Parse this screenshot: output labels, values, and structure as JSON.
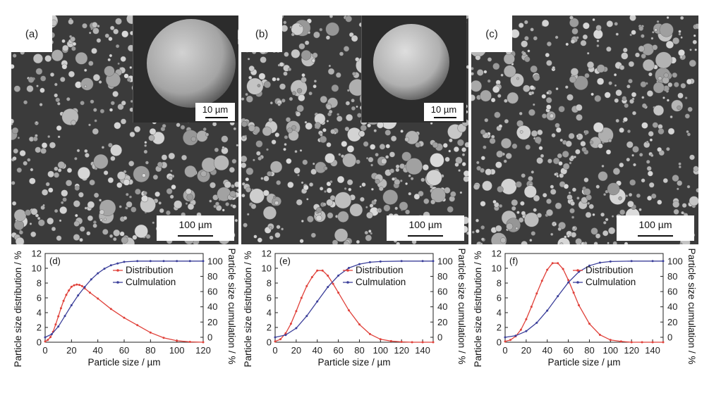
{
  "sem_panels": [
    {
      "label": "(a)",
      "inset_scale": "10 µm",
      "main_scale": "100 µm",
      "has_inset": true
    },
    {
      "label": "(b)",
      "inset_scale": "10 µm",
      "main_scale": "100 µm",
      "has_inset": true
    },
    {
      "label": "(c)",
      "main_scale": "100 µm",
      "has_inset": false
    }
  ],
  "colors": {
    "distribution": "#e0413a",
    "cumulation": "#3b3f9a",
    "sem_bg": "#3b3b3b"
  },
  "chart_data": [
    {
      "type": "line",
      "panel_label": "(d)",
      "xlabel": "Particle size / µm",
      "ylabel_left": "Particle size distribution / %",
      "ylabel_right": "Particle size cumulation / %",
      "xlim": [
        0,
        120
      ],
      "xticks": [
        0,
        20,
        40,
        60,
        80,
        100,
        120
      ],
      "ylim_left": [
        0,
        12
      ],
      "yticks_left": [
        0,
        2,
        4,
        6,
        8,
        10,
        12
      ],
      "ylim_right": [
        -6.5,
        110
      ],
      "yticks_right": [
        0,
        20,
        40,
        60,
        80,
        100
      ],
      "legend": [
        "Distribution",
        "Culmulation"
      ],
      "series": [
        {
          "name": "Distribution",
          "axis": "left",
          "x": [
            0,
            2,
            4,
            6,
            8,
            10,
            12,
            14,
            16,
            18,
            20,
            22,
            24,
            26,
            28,
            30,
            34,
            40,
            50,
            60,
            70,
            80,
            90,
            100,
            110,
            120
          ],
          "values": [
            0.1,
            0.3,
            0.7,
            1.4,
            2.4,
            3.5,
            4.6,
            5.6,
            6.4,
            7.0,
            7.5,
            7.7,
            7.8,
            7.75,
            7.6,
            7.3,
            6.7,
            5.9,
            4.5,
            3.3,
            2.3,
            1.3,
            0.6,
            0.2,
            0.05,
            0.0
          ]
        },
        {
          "name": "Culmulation",
          "axis": "right",
          "x": [
            0,
            5,
            10,
            15,
            20,
            25,
            30,
            35,
            40,
            45,
            50,
            55,
            60,
            70,
            80,
            90,
            100,
            110,
            120
          ],
          "values": [
            0,
            4,
            14,
            28,
            42,
            55,
            66,
            76,
            84,
            90,
            94.5,
            97,
            99,
            100,
            100,
            100,
            100,
            100,
            100
          ]
        }
      ]
    },
    {
      "type": "line",
      "panel_label": "(e)",
      "xlabel": "Particle size / µm",
      "ylabel_left": "Particle size distribution / %",
      "ylabel_right": "Particle size cumulation / %",
      "xlim": [
        0,
        150
      ],
      "xticks": [
        0,
        20,
        40,
        60,
        80,
        100,
        120,
        140
      ],
      "ylim_left": [
        0,
        12
      ],
      "yticks_left": [
        0,
        2,
        4,
        6,
        8,
        10,
        12
      ],
      "ylim_right": [
        -6.5,
        110
      ],
      "yticks_right": [
        0,
        20,
        40,
        60,
        80,
        100
      ],
      "legend": [
        "Distribution",
        "Culmulation"
      ],
      "series": [
        {
          "name": "Distribution",
          "axis": "left",
          "x": [
            0,
            5,
            10,
            15,
            20,
            25,
            30,
            35,
            40,
            45,
            50,
            55,
            60,
            70,
            80,
            90,
            100,
            110,
            120,
            130,
            140,
            150
          ],
          "values": [
            0.1,
            0.4,
            1.2,
            2.5,
            4.2,
            6.0,
            7.6,
            8.8,
            9.7,
            9.7,
            9.0,
            7.9,
            6.7,
            4.3,
            2.4,
            1.1,
            0.4,
            0.15,
            0.05,
            0.0,
            0.0,
            0.0
          ]
        },
        {
          "name": "Culmulation",
          "axis": "right",
          "x": [
            0,
            10,
            20,
            30,
            40,
            50,
            60,
            70,
            80,
            90,
            100,
            120,
            140,
            150
          ],
          "values": [
            0,
            3,
            12,
            28,
            47,
            66,
            81,
            91,
            96,
            98.5,
            99.5,
            100,
            100,
            100
          ]
        }
      ]
    },
    {
      "type": "line",
      "panel_label": "(f)",
      "xlabel": "Particle size / µm",
      "ylabel_left": "Particle size distribution / %",
      "ylabel_right": "Particle size cumulation / %",
      "xlim": [
        0,
        150
      ],
      "xticks": [
        0,
        20,
        40,
        60,
        80,
        100,
        120,
        140
      ],
      "ylim_left": [
        0,
        12
      ],
      "yticks_left": [
        0,
        2,
        4,
        6,
        8,
        10,
        12
      ],
      "ylim_right": [
        -6.5,
        110
      ],
      "yticks_right": [
        0,
        20,
        40,
        60,
        80,
        100
      ],
      "legend": [
        "Distribution",
        "Culmulation"
      ],
      "series": [
        {
          "name": "Distribution",
          "axis": "left",
          "x": [
            0,
            5,
            10,
            15,
            20,
            25,
            30,
            35,
            40,
            45,
            50,
            55,
            60,
            65,
            70,
            80,
            90,
            100,
            110,
            120,
            130,
            140,
            150
          ],
          "values": [
            0.1,
            0.3,
            0.8,
            1.7,
            3.1,
            4.8,
            6.6,
            8.3,
            9.8,
            10.7,
            10.7,
            9.9,
            8.4,
            6.7,
            5.0,
            2.5,
            1.0,
            0.3,
            0.1,
            0.0,
            0.0,
            0.0,
            0.0
          ]
        },
        {
          "name": "Culmulation",
          "axis": "right",
          "x": [
            0,
            10,
            20,
            30,
            40,
            50,
            60,
            70,
            80,
            90,
            100,
            120,
            140,
            150
          ],
          "values": [
            0,
            2,
            8,
            19,
            35,
            54,
            72,
            86,
            94,
            98,
            99.5,
            100,
            100,
            100
          ]
        }
      ]
    }
  ]
}
